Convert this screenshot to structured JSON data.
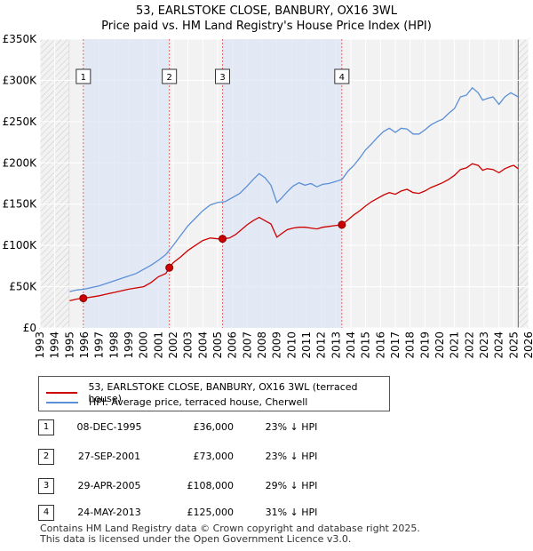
{
  "chart_data": {
    "type": "line",
    "title": "53, EARLSTOKE CLOSE, BANBURY, OX16 3WL",
    "subtitle": "Price paid vs. HM Land Registry's House Price Index (HPI)",
    "xlim": [
      1993,
      2026
    ],
    "ylim": [
      0,
      350000
    ],
    "y_ticks": [
      0,
      50000,
      100000,
      150000,
      200000,
      250000,
      300000,
      350000
    ],
    "y_tick_labels": [
      "£0",
      "£50K",
      "£100K",
      "£150K",
      "£200K",
      "£250K",
      "£300K",
      "£350K"
    ],
    "x_ticks": [
      1993,
      1994,
      1995,
      1996,
      1997,
      1998,
      1999,
      2000,
      2001,
      2002,
      2003,
      2004,
      2005,
      2006,
      2007,
      2008,
      2009,
      2010,
      2011,
      2012,
      2013,
      2014,
      2015,
      2016,
      2017,
      2018,
      2019,
      2020,
      2021,
      2022,
      2023,
      2024,
      2025,
      2026
    ],
    "x_tick_labels": [
      "1993",
      "1994",
      "1995",
      "1996",
      "1997",
      "1998",
      "1999",
      "2000",
      "2001",
      "2002",
      "2003",
      "2004",
      "2005",
      "2006",
      "2007",
      "2008",
      "2009",
      "2010",
      "2011",
      "2012",
      "2013",
      "2014",
      "2015",
      "2016",
      "2017",
      "2018",
      "2019",
      "2020",
      "2021",
      "2022",
      "2023",
      "2024",
      "2025",
      "2026"
    ],
    "series": [
      {
        "name": "53, EARLSTOKE CLOSE, BANBURY, OX16 3WL (terraced house)",
        "color": "#cc0000",
        "x": [
          1995.0,
          1995.5,
          1995.93,
          1996.5,
          1997,
          1997.5,
          1998,
          1998.5,
          1999,
          1999.5,
          2000,
          2000.5,
          2001,
          2001.5,
          2001.74,
          2002,
          2002.5,
          2003,
          2003.5,
          2004,
          2004.5,
          2005,
          2005.33,
          2005.8,
          2006.2,
          2006.6,
          2007,
          2007.4,
          2007.8,
          2008.2,
          2008.6,
          2009.0,
          2009.3,
          2009.7,
          2010.1,
          2010.5,
          2010.9,
          2011.3,
          2011.7,
          2012.1,
          2012.5,
          2012.9,
          2013.39,
          2013.8,
          2014.2,
          2014.6,
          2015.0,
          2015.4,
          2015.8,
          2016.2,
          2016.6,
          2017.0,
          2017.4,
          2017.8,
          2018.2,
          2018.6,
          2019.0,
          2019.4,
          2019.8,
          2020.2,
          2020.6,
          2021.0,
          2021.4,
          2021.8,
          2022.2,
          2022.6,
          2022.9,
          2023.2,
          2023.6,
          2024.0,
          2024.4,
          2024.8,
          2025.0,
          2025.3
        ],
        "values": [
          33000,
          35000,
          36000,
          37500,
          39000,
          41000,
          43000,
          45000,
          47000,
          48500,
          50000,
          55000,
          62000,
          66000,
          73000,
          79000,
          86000,
          94000,
          100000,
          106000,
          109000,
          108000,
          108000,
          109000,
          113000,
          119000,
          125000,
          130000,
          134000,
          130000,
          126000,
          110000,
          114000,
          119000,
          121000,
          122000,
          122000,
          121000,
          120000,
          122000,
          123000,
          124000,
          125000,
          131000,
          137000,
          142000,
          148000,
          153000,
          157000,
          161000,
          164000,
          162000,
          166000,
          168000,
          164000,
          163000,
          166000,
          170000,
          173000,
          176000,
          180000,
          185000,
          192000,
          194000,
          199000,
          197000,
          191000,
          193000,
          192000,
          188000,
          193000,
          196000,
          197000,
          193000
        ]
      },
      {
        "name": "HPI: Average price, terraced house, Cherwell",
        "color": "#5b8fd6",
        "x": [
          1995.0,
          1995.5,
          1996.0,
          1996.5,
          1997,
          1997.5,
          1998,
          1998.5,
          1999,
          1999.5,
          2000,
          2000.5,
          2001,
          2001.5,
          2002,
          2002.5,
          2003,
          2003.5,
          2004,
          2004.5,
          2005,
          2005.5,
          2006,
          2006.5,
          2007,
          2007.4,
          2007.8,
          2008.2,
          2008.6,
          2009.0,
          2009.3,
          2009.7,
          2010.1,
          2010.5,
          2010.9,
          2011.3,
          2011.7,
          2012.1,
          2012.5,
          2012.9,
          2013.4,
          2013.8,
          2014.2,
          2014.6,
          2015.0,
          2015.4,
          2015.8,
          2016.2,
          2016.6,
          2017.0,
          2017.4,
          2017.8,
          2018.2,
          2018.6,
          2019.0,
          2019.4,
          2019.8,
          2020.2,
          2020.6,
          2021.0,
          2021.4,
          2021.8,
          2022.2,
          2022.6,
          2022.9,
          2023.2,
          2023.6,
          2024.0,
          2024.4,
          2024.8,
          2025.0,
          2025.3
        ],
        "values": [
          44000,
          46000,
          47000,
          49000,
          51000,
          54000,
          57000,
          60000,
          63000,
          66000,
          71000,
          76000,
          82000,
          89000,
          100000,
          112000,
          124000,
          133000,
          142000,
          149000,
          152000,
          153000,
          158000,
          163000,
          172000,
          180000,
          187000,
          182000,
          173000,
          152000,
          157000,
          165000,
          172000,
          176000,
          173000,
          175000,
          171000,
          174000,
          175000,
          177000,
          180000,
          190000,
          197000,
          206000,
          216000,
          223000,
          231000,
          238000,
          242000,
          237000,
          242000,
          241000,
          235000,
          235000,
          240000,
          246000,
          250000,
          253000,
          260000,
          266000,
          280000,
          282000,
          291000,
          285000,
          276000,
          278000,
          280000,
          271000,
          280000,
          285000,
          283000,
          280000
        ]
      }
    ],
    "annotations": [
      {
        "label": "1",
        "x": 1995.93,
        "value": 36000
      },
      {
        "label": "2",
        "x": 2001.74,
        "value": 73000
      },
      {
        "label": "3",
        "x": 2005.33,
        "value": 108000
      },
      {
        "label": "4",
        "x": 2013.39,
        "value": 125000
      }
    ],
    "hatched_regions": [
      [
        1993,
        1995.0
      ],
      [
        2025.3,
        2026
      ]
    ]
  },
  "legend": {
    "price_paid": "53, EARLSTOKE CLOSE, BANBURY, OX16 3WL (terraced house)",
    "hpi": "HPI: Average price, terraced house, Cherwell"
  },
  "sales": [
    {
      "num": "1",
      "date": "08-DEC-1995",
      "price": "£36,000",
      "hpi": "23% ↓ HPI"
    },
    {
      "num": "2",
      "date": "27-SEP-2001",
      "price": "£73,000",
      "hpi": "23% ↓ HPI"
    },
    {
      "num": "3",
      "date": "29-APR-2005",
      "price": "£108,000",
      "hpi": "29% ↓ HPI"
    },
    {
      "num": "4",
      "date": "24-MAY-2013",
      "price": "£125,000",
      "hpi": "31% ↓ HPI"
    }
  ],
  "footer": {
    "line1": "Contains HM Land Registry data © Crown copyright and database right 2025.",
    "line2": "This data is licensed under the Open Government Licence v3.0."
  }
}
